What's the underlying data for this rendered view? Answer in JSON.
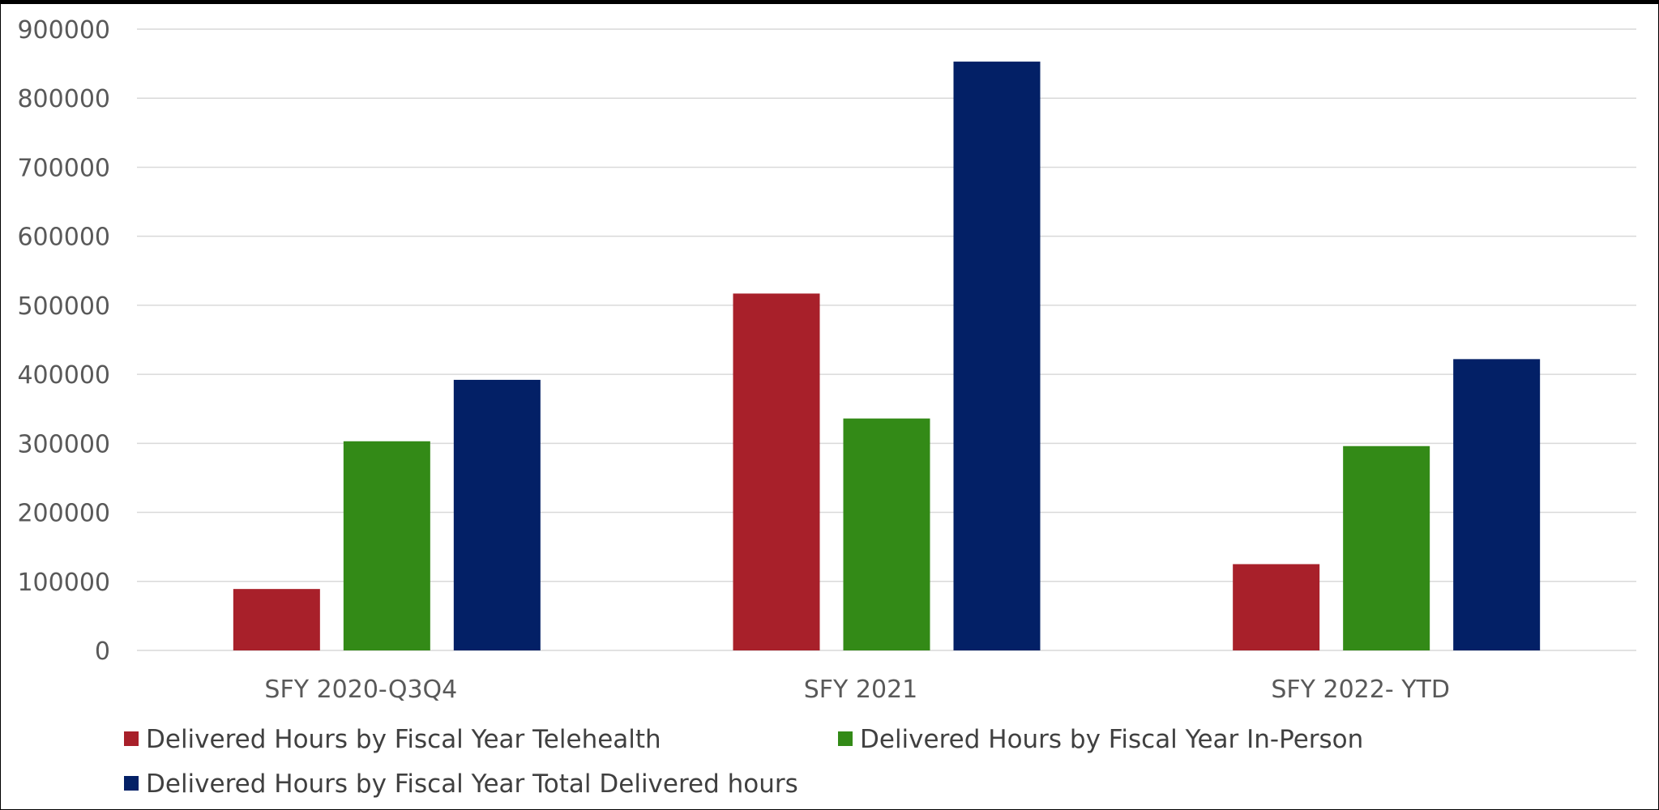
{
  "chart_data": {
    "type": "bar",
    "categories": [
      "SFY 2020-Q3Q4",
      "SFY 2021",
      "SFY 2022- YTD"
    ],
    "series": [
      {
        "name": "Delivered Hours by Fiscal Year Telehealth",
        "color": "#A8202A",
        "values": [
          89000,
          517000,
          125000
        ]
      },
      {
        "name": "Delivered Hours by Fiscal Year In-Person",
        "color": "#338A17",
        "values": [
          303000,
          336000,
          296000
        ]
      },
      {
        "name": "Delivered Hours by Fiscal Year Total Delivered hours",
        "color": "#032066",
        "values": [
          392000,
          853000,
          422000
        ]
      }
    ],
    "ylim": [
      0,
      900000
    ],
    "yticks": [
      "0",
      "100000",
      "200000",
      "300000",
      "400000",
      "500000",
      "600000",
      "700000",
      "800000",
      "900000"
    ],
    "grid": true,
    "legend_position": "bottom",
    "title": "",
    "xlabel": "",
    "ylabel": ""
  }
}
